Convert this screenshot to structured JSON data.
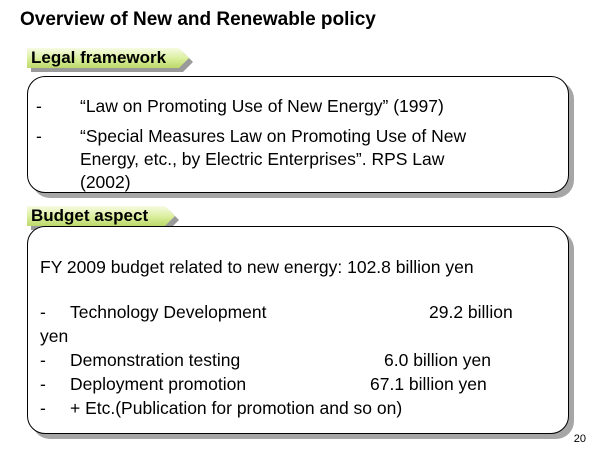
{
  "slide": {
    "title": "Overview of New and Renewable policy",
    "page_number": "20"
  },
  "legal": {
    "heading": "Legal framework",
    "items": [
      {
        "bullet": "-",
        "lines": [
          "“Law on Promoting Use of New Energy” (1997)"
        ]
      },
      {
        "bullet": "-",
        "lines": [
          "“Special Measures Law on Promoting Use of New",
          "Energy, etc., by Electric Enterprises”.  RPS Law",
          "(2002)"
        ]
      }
    ]
  },
  "budget": {
    "heading": "Budget aspect",
    "summary": "FY 2009 budget related to new energy: 102.8 billion yen",
    "items": [
      {
        "bullet": "-",
        "label": "Technology Development",
        "amount": "29.2 billion",
        "wrap": "yen"
      },
      {
        "bullet": "-",
        "label": "Demonstration testing",
        "amount": "6.0 billion yen"
      },
      {
        "bullet": "-",
        "label": "Deployment promotion",
        "amount": "67.1 billion yen"
      },
      {
        "bullet": "-",
        "label": "+ Etc.(Publication for promotion and so on)"
      }
    ]
  }
}
